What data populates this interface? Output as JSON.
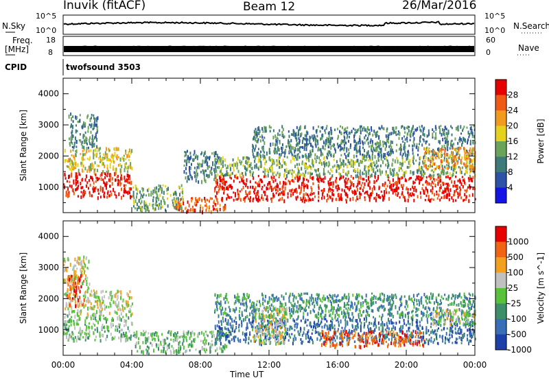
{
  "header": {
    "site": "Inuvik (fitACF)",
    "beam": "Beam 12",
    "date": "26/Mar/2016"
  },
  "strips": {
    "nsky_label": "N.Sky",
    "nsky_ticks": [
      "10^5",
      "10^0"
    ],
    "nsearch_label": "N.Search",
    "nsearch_ticks": [
      "10^5",
      "10^0"
    ],
    "freq_label": "Freq.",
    "freq_unit": "[MHz]",
    "freq_ticks": [
      "18",
      "8"
    ],
    "nave_label": "Nave",
    "nave_ticks": [
      "60",
      "0"
    ],
    "cpid_label": "CPID",
    "cpid_value": "twofsound 3503"
  },
  "chart_data": [
    {
      "type": "heatmap",
      "title": "",
      "xlabel": "Time UT",
      "ylabel": "Slant Range [km]",
      "x_ticks": [
        "00:00",
        "04:00",
        "08:00",
        "12:00",
        "16:00",
        "20:00",
        "00:00"
      ],
      "y_ticks": [
        1000,
        2000,
        3000,
        4000
      ],
      "xlim_hours": [
        0,
        24
      ],
      "ylim": [
        180,
        4500
      ],
      "colorbar": {
        "label": "Power [dB]",
        "ticks": [
          "4",
          "8",
          "12",
          "16",
          "20",
          "24",
          "28"
        ],
        "colors": [
          "#1414e6",
          "#2d53a8",
          "#3d7a7a",
          "#6aa35a",
          "#e6d21e",
          "#f29a1e",
          "#f05a14",
          "#e60000"
        ]
      },
      "regions": [
        {
          "t0": 0.0,
          "t1": 4.0,
          "r0": 700,
          "r1": 1500,
          "level": 7
        },
        {
          "t0": 0.0,
          "t1": 4.0,
          "r0": 1500,
          "r1": 2300,
          "level": 4
        },
        {
          "t0": 0.3,
          "t1": 2.0,
          "r0": 2300,
          "r1": 3400,
          "level": 2
        },
        {
          "t0": 4.0,
          "t1": 7.0,
          "r0": 300,
          "r1": 1100,
          "level": 3
        },
        {
          "t0": 6.5,
          "t1": 9.5,
          "r0": 250,
          "r1": 700,
          "level": 6
        },
        {
          "t0": 7.0,
          "t1": 9.0,
          "r0": 1200,
          "r1": 2200,
          "level": 2
        },
        {
          "t0": 8.8,
          "t1": 24.0,
          "r0": 600,
          "r1": 1400,
          "level": 7
        },
        {
          "t0": 8.8,
          "t1": 24.0,
          "r0": 1400,
          "r1": 2000,
          "level": 3
        },
        {
          "t0": 11.0,
          "t1": 24.0,
          "r0": 2000,
          "r1": 3000,
          "level": 2
        },
        {
          "t0": 21.0,
          "t1": 24.0,
          "r0": 1600,
          "r1": 2300,
          "level": 5
        }
      ]
    },
    {
      "type": "heatmap",
      "title": "",
      "xlabel": "Time UT",
      "ylabel": "Slant Range [km]",
      "x_ticks": [
        "00:00",
        "04:00",
        "08:00",
        "12:00",
        "16:00",
        "20:00",
        "00:00"
      ],
      "y_ticks": [
        1000,
        2000,
        3000,
        4000
      ],
      "xlim_hours": [
        0,
        24
      ],
      "ylim": [
        180,
        4500
      ],
      "colorbar": {
        "label": "Velocity [m s^-1]",
        "ticks": [
          "1000",
          "500",
          "100",
          "25",
          "-25",
          "-100",
          "-500",
          "-1000"
        ],
        "colors": [
          "#1c3fa8",
          "#3a6fb8",
          "#3d8f6a",
          "#58c23a",
          "#c0c0c0",
          "#f2a01e",
          "#f06414",
          "#e60000"
        ]
      },
      "regions": [
        {
          "t0": 0.0,
          "t1": 4.0,
          "r0": 700,
          "r1": 1500,
          "level": 3
        },
        {
          "t0": 0.0,
          "t1": 4.0,
          "r0": 1500,
          "r1": 2300,
          "level": 4
        },
        {
          "t0": 0.0,
          "t1": 1.5,
          "r0": 2300,
          "r1": 3400,
          "level": 4
        },
        {
          "t0": 0.2,
          "t1": 1.2,
          "r0": 1800,
          "r1": 2800,
          "level": 6
        },
        {
          "t0": 4.0,
          "t1": 9.5,
          "r0": 300,
          "r1": 1000,
          "level": 3
        },
        {
          "t0": 8.8,
          "t1": 24.0,
          "r0": 600,
          "r1": 1400,
          "level": 1
        },
        {
          "t0": 8.8,
          "t1": 24.0,
          "r0": 1400,
          "r1": 2200,
          "level": 2
        },
        {
          "t0": 15.0,
          "t1": 21.0,
          "r0": 500,
          "r1": 1000,
          "level": 6
        },
        {
          "t0": 11.0,
          "t1": 13.0,
          "r0": 600,
          "r1": 1800,
          "level": 4
        },
        {
          "t0": 21.5,
          "t1": 24.0,
          "r0": 1200,
          "r1": 1700,
          "level": 4
        }
      ]
    }
  ]
}
